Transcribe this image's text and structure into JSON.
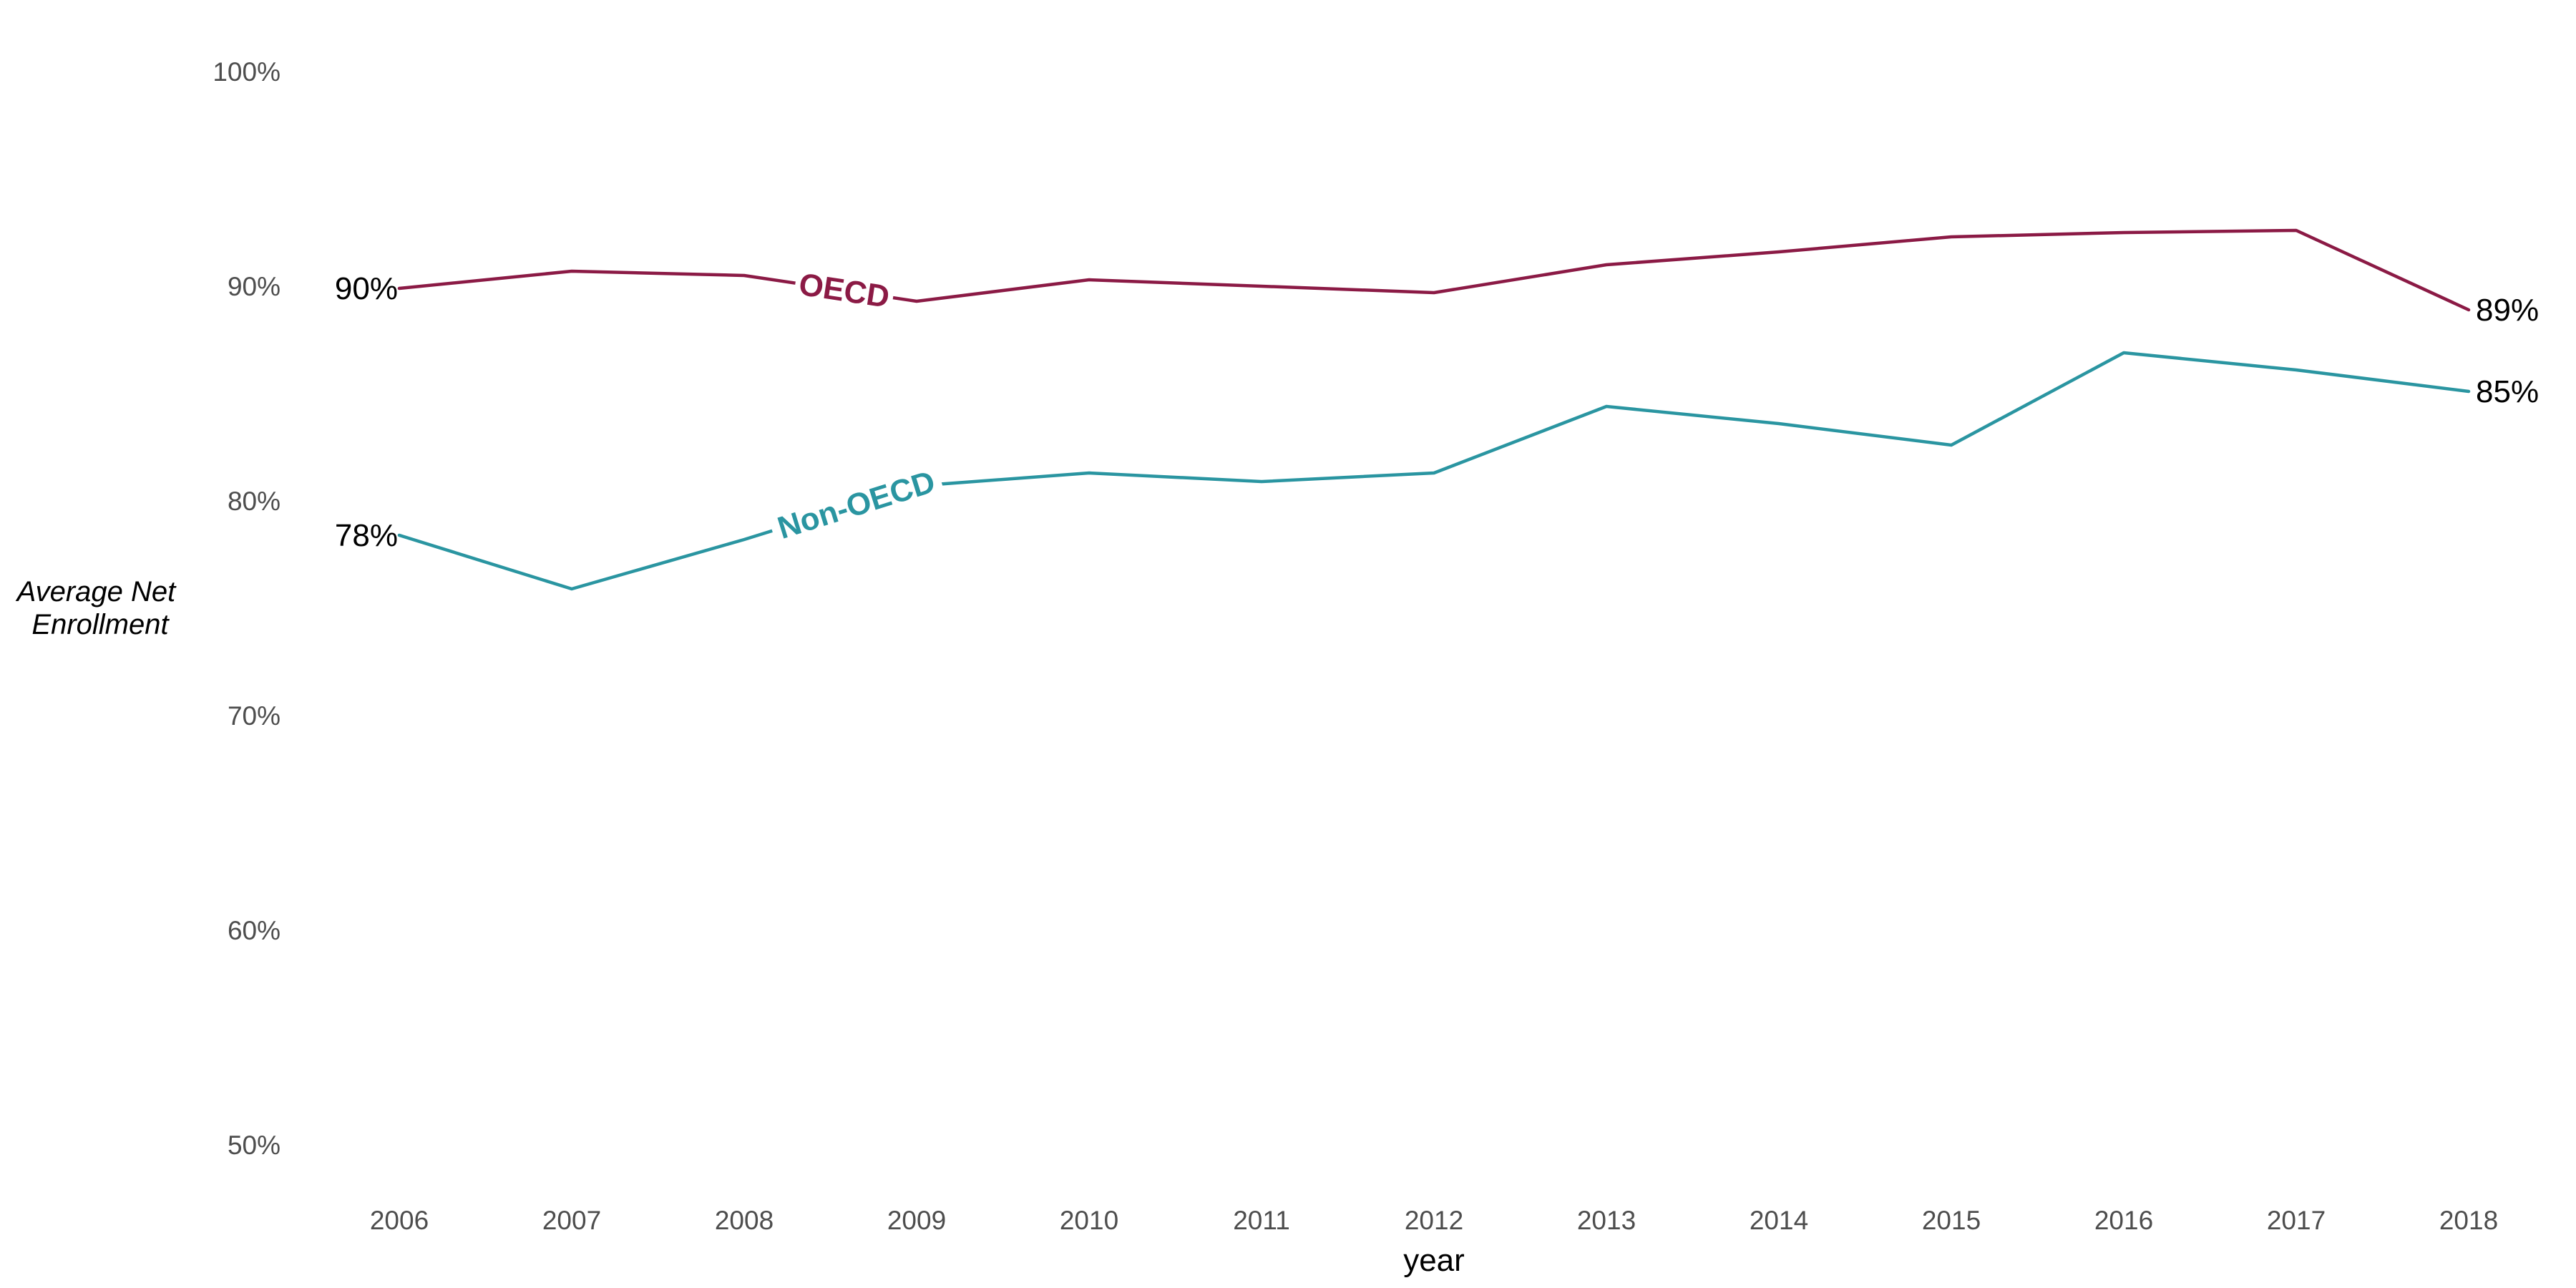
{
  "chart_data": {
    "type": "line",
    "x": [
      2006,
      2007,
      2008,
      2009,
      2010,
      2011,
      2012,
      2013,
      2014,
      2015,
      2016,
      2017,
      2018
    ],
    "xlabel": "year",
    "ylabel": "Average Net Enrollment",
    "ylabel_lines": [
      "Average Net",
      "Enrollment"
    ],
    "y_ticks": [
      50,
      60,
      70,
      80,
      90,
      100
    ],
    "y_tick_labels": [
      "50%",
      "60%",
      "70%",
      "80%",
      "90%",
      "100%"
    ],
    "ylim": [
      50,
      100
    ],
    "grid": false,
    "series": [
      {
        "name": "OECD",
        "color": "#8b1a45",
        "values": [
          89.9,
          90.7,
          90.5,
          89.3,
          90.3,
          90.0,
          89.7,
          91.0,
          91.6,
          92.3,
          92.5,
          92.6,
          88.9
        ],
        "start_label": "90%",
        "end_label": "89%"
      },
      {
        "name": "Non-OECD",
        "color": "#2a95a1",
        "values": [
          78.4,
          75.9,
          78.2,
          80.7,
          81.3,
          80.9,
          81.3,
          84.4,
          83.6,
          82.6,
          86.9,
          86.1,
          85.1
        ],
        "start_label": "78%",
        "end_label": "85%"
      }
    ]
  }
}
